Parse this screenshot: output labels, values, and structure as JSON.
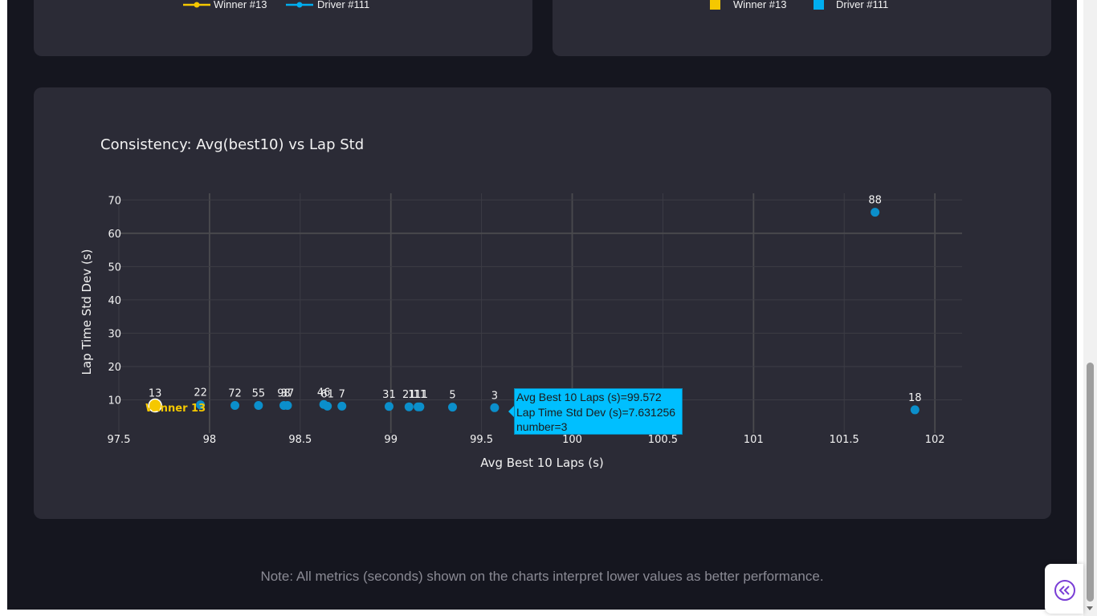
{
  "top_left_legend": {
    "items": [
      {
        "label": "Winner #13",
        "color": "#f5c800"
      },
      {
        "label": "Driver #111",
        "color": "#00aef0"
      }
    ]
  },
  "top_right_legend": {
    "items": [
      {
        "label": "Winner #13",
        "color": "#f5c800"
      },
      {
        "label": "Driver #111",
        "color": "#00aef0"
      }
    ]
  },
  "chart_data": {
    "type": "scatter",
    "title": "Consistency: Avg(best10) vs Lap Std",
    "xlabel": "Avg Best 10 Laps (s)",
    "ylabel": "Lap Time Std Dev (s)",
    "xlim": [
      97.5,
      102.15
    ],
    "ylim": [
      0,
      72
    ],
    "xticks": [
      "97.5",
      "98",
      "98.5",
      "99",
      "99.5",
      "100",
      "100.5",
      "101",
      "101.5",
      "102"
    ],
    "yticks": [
      "10",
      "20",
      "30",
      "40",
      "50",
      "60",
      "70"
    ],
    "grid": true,
    "points": [
      {
        "label": "13",
        "x": 97.7,
        "y": 8.3,
        "highlight": "winner"
      },
      {
        "label": "22",
        "x": 97.95,
        "y": 8.5
      },
      {
        "label": "72",
        "x": 98.14,
        "y": 8.3
      },
      {
        "label": "55",
        "x": 98.27,
        "y": 8.3
      },
      {
        "label": "98",
        "x": 98.41,
        "y": 8.3
      },
      {
        "label": "37",
        "x": 98.43,
        "y": 8.3
      },
      {
        "label": "46",
        "x": 98.63,
        "y": 8.6
      },
      {
        "label": "61",
        "x": 98.65,
        "y": 8.1
      },
      {
        "label": "7",
        "x": 98.73,
        "y": 8.1
      },
      {
        "label": "31",
        "x": 98.99,
        "y": 8.0
      },
      {
        "label": "21",
        "x": 99.1,
        "y": 7.9
      },
      {
        "label": "111",
        "x": 99.15,
        "y": 7.9
      },
      {
        "label": "11",
        "x": 99.16,
        "y": 7.9
      },
      {
        "label": "5",
        "x": 99.34,
        "y": 7.8
      },
      {
        "label": "3",
        "x": 99.572,
        "y": 7.631256
      },
      {
        "label": "88",
        "x": 101.67,
        "y": 66.3
      },
      {
        "label": "18",
        "x": 101.89,
        "y": 7.0
      }
    ],
    "winner_annotation": "Winner 13",
    "marker_color": "#0b8fcb",
    "winner_color": "#f5c800"
  },
  "tooltip": {
    "line1": "Avg Best 10 Laps (s)=99.572",
    "line2": "Lap Time Std Dev (s)=7.631256",
    "line3": "number=3"
  },
  "note": "Note: All metrics (seconds) shown on the charts interpret lower values as better performance."
}
